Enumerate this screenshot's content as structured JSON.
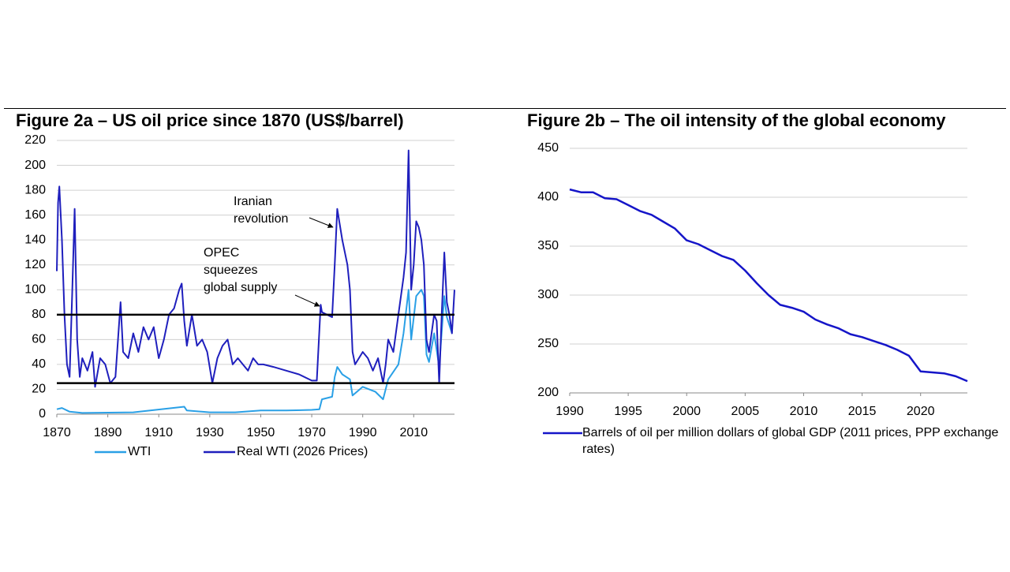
{
  "chart_data": [
    {
      "type": "line",
      "title": "Figure 2a – US oil price since 1870 (US$/barrel)",
      "xlim": [
        1870,
        2026
      ],
      "xticks": [
        1870,
        1890,
        1910,
        1930,
        1950,
        1970,
        1990,
        2010
      ],
      "ylim": [
        0,
        220
      ],
      "yticks": [
        0,
        20,
        40,
        60,
        80,
        100,
        120,
        140,
        160,
        180,
        200,
        220
      ],
      "grid": true,
      "reference_lines": [
        80,
        25
      ],
      "reference_color": "#000000",
      "annotations": [
        {
          "lines": [
            "Iranian",
            "revolution"
          ]
        },
        {
          "lines": [
            "OPEC",
            "squeezes",
            "global supply"
          ]
        }
      ],
      "series": [
        {
          "name": "WTI",
          "color": "#2aa0e6",
          "x": [
            1870,
            1872,
            1875,
            1880,
            1900,
            1920,
            1921,
            1930,
            1940,
            1950,
            1960,
            1970,
            1973,
            1974,
            1978,
            1979,
            1980,
            1982,
            1985,
            1986,
            1990,
            1995,
            1998,
            2000,
            2004,
            2006,
            2008,
            2009,
            2011,
            2013,
            2014,
            2015,
            2016,
            2018,
            2020,
            2022,
            2023,
            2025
          ],
          "values": [
            4,
            5,
            2,
            1,
            1.5,
            6,
            3,
            1.5,
            1.5,
            3,
            3,
            3.5,
            4,
            12,
            14,
            30,
            38,
            32,
            28,
            15,
            22,
            18,
            12,
            28,
            40,
            65,
            100,
            60,
            95,
            100,
            95,
            48,
            42,
            65,
            38,
            95,
            78,
            65
          ]
        },
        {
          "name": "Real WTI (2026 Prices)",
          "color": "#1f1fbd",
          "x": [
            1870,
            1870.5,
            1871,
            1872,
            1873,
            1874,
            1875,
            1876,
            1877,
            1878,
            1879,
            1880,
            1882,
            1884,
            1885,
            1887,
            1889,
            1891,
            1893,
            1895,
            1896,
            1898,
            1900,
            1902,
            1904,
            1906,
            1908,
            1910,
            1912,
            1914,
            1916,
            1918,
            1919,
            1920,
            1921,
            1923,
            1925,
            1927,
            1929,
            1931,
            1933,
            1935,
            1937,
            1939,
            1941,
            1943,
            1945,
            1947,
            1949,
            1951,
            1955,
            1960,
            1965,
            1970,
            1972,
            1973.5,
            1974,
            1978,
            1979,
            1980,
            1982,
            1984,
            1985,
            1986,
            1987,
            1990,
            1992,
            1994,
            1996,
            1998,
            1999,
            2000,
            2002,
            2004,
            2006,
            2007,
            2008,
            2009,
            2010,
            2011,
            2012,
            2013,
            2014,
            2015,
            2016,
            2018,
            2019,
            2020,
            2021,
            2022,
            2023,
            2024,
            2025,
            2026
          ],
          "values": [
            115,
            170,
            183,
            140,
            80,
            40,
            30,
            95,
            165,
            60,
            30,
            45,
            35,
            50,
            22,
            45,
            40,
            25,
            30,
            90,
            50,
            45,
            65,
            50,
            70,
            60,
            70,
            45,
            60,
            80,
            85,
            100,
            105,
            75,
            55,
            80,
            55,
            60,
            50,
            25,
            45,
            55,
            60,
            40,
            45,
            40,
            35,
            45,
            40,
            40,
            38,
            35,
            32,
            27,
            27,
            88,
            82,
            78,
            120,
            165,
            140,
            120,
            100,
            50,
            40,
            50,
            45,
            35,
            45,
            25,
            40,
            60,
            50,
            80,
            110,
            130,
            212,
            100,
            120,
            155,
            150,
            140,
            120,
            60,
            50,
            80,
            75,
            25,
            80,
            130,
            90,
            80,
            65,
            100
          ]
        }
      ]
    },
    {
      "type": "line",
      "title": "Figure 2b – The oil intensity of the global economy",
      "xlim": [
        1990,
        2024
      ],
      "xticks": [
        1990,
        1995,
        2000,
        2005,
        2010,
        2015,
        2020
      ],
      "ylim": [
        200,
        450
      ],
      "yticks": [
        200,
        250,
        300,
        350,
        400,
        450
      ],
      "grid": true,
      "series": [
        {
          "name": "Barrels of oil per million dollars of global GDP (2011 prices, PPP exchange rates)",
          "color": "#1515c8",
          "x": [
            1990,
            1991,
            1992,
            1993,
            1994,
            1995,
            1996,
            1997,
            1998,
            1999,
            2000,
            2001,
            2002,
            2003,
            2004,
            2005,
            2006,
            2007,
            2008,
            2009,
            2010,
            2011,
            2012,
            2013,
            2014,
            2015,
            2016,
            2017,
            2018,
            2019,
            2020,
            2021,
            2022,
            2023,
            2024
          ],
          "values": [
            408,
            405,
            405,
            399,
            398,
            392,
            386,
            382,
            375,
            368,
            356,
            352,
            346,
            340,
            336,
            325,
            312,
            300,
            290,
            287,
            283,
            275,
            270,
            266,
            260,
            257,
            253,
            249,
            244,
            238,
            222,
            221,
            220,
            217,
            212
          ]
        }
      ]
    }
  ]
}
